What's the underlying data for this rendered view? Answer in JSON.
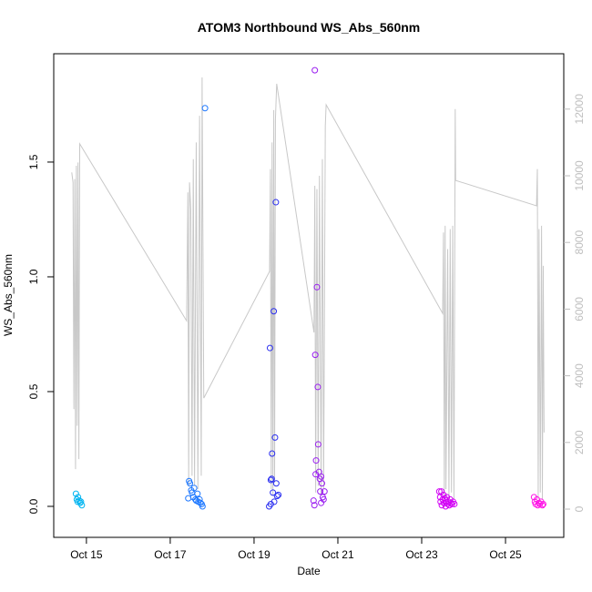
{
  "chart_data": {
    "type": "scatter",
    "title": "ATOM3 Northbound WS_Abs_560nm",
    "x_label": "Date",
    "y_label": "WS_Abs_560nm",
    "xlim": [
      14.22,
      26.39
    ],
    "ylim": [
      -0.135,
      1.972
    ],
    "y2lim": [
      -847,
      13661
    ],
    "xticks": [
      {
        "value": 15,
        "label": "Oct 15"
      },
      {
        "value": 17,
        "label": "Oct 17"
      },
      {
        "value": 19,
        "label": "Oct 19"
      },
      {
        "value": 21,
        "label": "Oct 21"
      },
      {
        "value": 23,
        "label": "Oct 23"
      },
      {
        "value": 25,
        "label": "Oct 25"
      }
    ],
    "yticks": [
      {
        "value": 0,
        "label": "0.0"
      },
      0.5,
      {
        "value": 1,
        "label": "1.0"
      },
      1.5
    ],
    "y2ticks": [
      0,
      2000,
      4000,
      6000,
      8000,
      10000,
      12000
    ],
    "y2_color": "#bebebe",
    "series": [
      {
        "type": "line",
        "axis": "y2",
        "color": "#c8c8c8",
        "x": [
          14.65,
          14.68,
          14.7,
          14.72,
          14.74,
          14.76,
          14.78,
          14.8,
          14.82,
          14.84,
          17.39,
          17.42,
          17.44,
          17.46,
          17.49,
          17.52,
          17.55,
          17.58,
          17.62,
          17.66,
          17.7,
          17.74,
          17.76,
          17.8,
          19.37,
          19.39,
          19.41,
          19.43,
          19.45,
          19.47,
          19.49,
          19.51,
          19.54,
          20.43,
          20.45,
          20.47,
          20.5,
          20.53,
          20.56,
          20.6,
          20.63,
          20.66,
          20.7,
          20.72,
          23.5,
          23.52,
          23.54,
          23.56,
          23.58,
          23.62,
          23.65,
          23.68,
          23.71,
          23.74,
          23.77,
          23.8,
          23.81,
          25.74,
          25.76,
          25.78,
          25.8,
          25.83,
          25.86,
          25.88,
          25.9,
          25.92
        ],
        "values": [
          10100,
          9800,
          3000,
          9900,
          1200,
          10300,
          2500,
          10400,
          1500,
          10960,
          5650,
          9500,
          700,
          9800,
          9000,
          1000,
          10500,
          700,
          11000,
          600,
          11800,
          1000,
          12950,
          3330,
          7130,
          10200,
          600,
          11000,
          400,
          11970,
          800,
          11700,
          12760,
          5300,
          9700,
          500,
          9600,
          700,
          10000,
          400,
          10500,
          600,
          11500,
          12130,
          5870,
          8300,
          300,
          8500,
          600,
          7800,
          300,
          8400,
          500,
          8500,
          300,
          12000,
          9860,
          9100,
          10200,
          300,
          8400,
          500,
          8500,
          300,
          7300,
          2300
        ]
      },
      {
        "type": "scatter",
        "color": "#00b4f0",
        "x": [
          14.75,
          14.77,
          14.79,
          14.8,
          14.83,
          14.85,
          14.87,
          14.89
        ],
        "values": [
          0.055,
          0.03,
          0.02,
          0.04,
          0.025,
          0.015,
          0.02,
          0.005
        ]
      },
      {
        "type": "scatter",
        "color": "#1e78ff",
        "x": [
          17.45,
          17.47,
          17.43,
          17.5,
          17.52,
          17.55,
          17.57,
          17.6,
          17.62,
          17.65,
          17.67,
          17.7,
          17.72,
          17.75,
          17.77,
          17.83
        ],
        "values": [
          0.11,
          0.1,
          0.035,
          0.07,
          0.06,
          0.04,
          0.08,
          0.03,
          0.025,
          0.055,
          0.02,
          0.03,
          0.015,
          0.01,
          0,
          1.735
        ]
      },
      {
        "type": "scatter",
        "color": "#2a2ef0",
        "x": [
          19.38,
          19.4,
          19.42,
          19.43,
          19.45,
          19.47,
          19.5,
          19.52,
          19.48,
          19.4,
          19.36,
          19.55,
          19.53,
          19.58
        ],
        "values": [
          0.69,
          0.115,
          0.12,
          0.23,
          0.06,
          0.85,
          0.3,
          1.325,
          0.02,
          0.01,
          0,
          0.045,
          0.1,
          0.05
        ]
      },
      {
        "type": "scatter",
        "color": "#9a1ef0",
        "x": [
          20.45,
          20.42,
          20.44,
          20.46,
          20.47,
          20.48,
          20.5,
          20.52,
          20.53,
          20.55,
          20.57,
          20.58,
          20.6,
          20.62,
          20.64,
          20.66,
          20.68,
          20.6
        ],
        "values": [
          1.9,
          0.025,
          0.005,
          0.66,
          0.14,
          0.2,
          0.955,
          0.52,
          0.27,
          0.15,
          0.12,
          0.065,
          0.13,
          0.1,
          0.04,
          0.03,
          0.065,
          0.015
        ]
      },
      {
        "type": "scatter",
        "color": "#d200f5",
        "x": [
          23.42,
          23.44,
          23.45,
          23.47,
          23.48,
          23.5,
          23.52,
          23.53,
          23.55,
          23.57,
          23.58,
          23.6,
          23.62,
          23.64,
          23.66,
          23.68,
          23.7,
          23.72,
          23.75,
          23.78
        ],
        "values": [
          0.065,
          0.04,
          0.02,
          0.065,
          0.005,
          0.03,
          0.05,
          0.015,
          0.035,
          0,
          0.025,
          0.04,
          0.01,
          0.02,
          0.005,
          0.03,
          0.015,
          0.01,
          0.02,
          0.01
        ]
      },
      {
        "type": "scatter",
        "color": "#ff14e6",
        "x": [
          25.68,
          25.7,
          25.72,
          25.75,
          25.77,
          25.8,
          25.82,
          25.85,
          25.88,
          25.9
        ],
        "values": [
          0.04,
          0.02,
          0.01,
          0.03,
          0.005,
          0.015,
          0.01,
          0.02,
          0.005,
          0.01
        ]
      }
    ]
  }
}
